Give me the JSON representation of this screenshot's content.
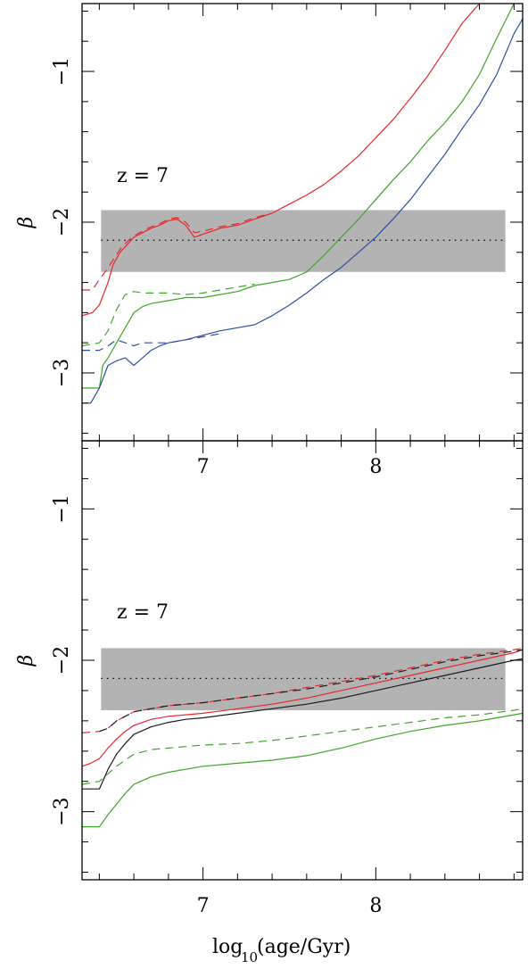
{
  "chart_data": [
    {
      "type": "line",
      "panel": "top",
      "annotation": "z = 7",
      "ylabel": "β",
      "xlim": [
        6.3,
        8.85
      ],
      "ylim": [
        -3.45,
        -0.55
      ],
      "xticks_major": [
        "7",
        "8"
      ],
      "yticks_major": [
        "−1",
        "−2",
        "−3"
      ],
      "band": {
        "y_low": -2.33,
        "y_high": -1.92,
        "x_start": 6.41,
        "x_end": 8.75,
        "color": "#b3b3b3"
      },
      "reference_line": {
        "y": -2.12,
        "style": "dotted"
      },
      "series": [
        {
          "color": "#e8282b",
          "style": "solid",
          "x": [
            6.3,
            6.36,
            6.4,
            6.45,
            6.48,
            6.52,
            6.56,
            6.6,
            6.65,
            6.7,
            6.75,
            6.8,
            6.85,
            6.9,
            6.95,
            7.0,
            7.1,
            7.2,
            7.3,
            7.4,
            7.5,
            7.6,
            7.7,
            7.8,
            7.9,
            8.0,
            8.1,
            8.2,
            8.3,
            8.4,
            8.5,
            8.6
          ],
          "y": [
            -2.62,
            -2.6,
            -2.55,
            -2.4,
            -2.28,
            -2.2,
            -2.15,
            -2.1,
            -2.07,
            -2.04,
            -2.02,
            -1.99,
            -1.98,
            -2.02,
            -2.1,
            -2.08,
            -2.04,
            -2.02,
            -1.98,
            -1.94,
            -1.88,
            -1.82,
            -1.75,
            -1.66,
            -1.56,
            -1.44,
            -1.32,
            -1.18,
            -1.03,
            -0.86,
            -0.68,
            -0.55
          ]
        },
        {
          "color": "#e8282b",
          "style": "dashed",
          "x": [
            6.3,
            6.36,
            6.4,
            6.44,
            6.48,
            6.52,
            6.56,
            6.6,
            6.65,
            6.7,
            6.75,
            6.8,
            6.85,
            6.9,
            6.95,
            7.0,
            7.1,
            7.2,
            7.3,
            7.4
          ],
          "y": [
            -2.45,
            -2.45,
            -2.38,
            -2.32,
            -2.25,
            -2.18,
            -2.13,
            -2.09,
            -2.06,
            -2.03,
            -2.01,
            -1.98,
            -1.97,
            -2.0,
            -2.07,
            -2.06,
            -2.03,
            -2.01,
            -1.97,
            -1.94
          ]
        },
        {
          "color": "#3fa52b",
          "style": "solid",
          "x": [
            6.3,
            6.4,
            6.42,
            6.45,
            6.5,
            6.55,
            6.6,
            6.65,
            6.7,
            6.8,
            6.9,
            7.0,
            7.1,
            7.2,
            7.3,
            7.4,
            7.5,
            7.6,
            7.7,
            7.8,
            7.9,
            8.0,
            8.1,
            8.2,
            8.3,
            8.4,
            8.5,
            8.6,
            8.7,
            8.8
          ],
          "y": [
            -3.1,
            -3.1,
            -2.95,
            -2.9,
            -2.8,
            -2.7,
            -2.6,
            -2.56,
            -2.54,
            -2.52,
            -2.5,
            -2.5,
            -2.48,
            -2.46,
            -2.42,
            -2.4,
            -2.38,
            -2.33,
            -2.22,
            -2.1,
            -1.98,
            -1.85,
            -1.72,
            -1.6,
            -1.46,
            -1.34,
            -1.2,
            -1.02,
            -0.78,
            -0.55
          ]
        },
        {
          "color": "#3fa52b",
          "style": "dashed",
          "x": [
            6.3,
            6.4,
            6.45,
            6.5,
            6.55,
            6.6,
            6.65,
            6.7,
            6.8,
            6.9,
            7.0,
            7.1,
            7.2,
            7.3
          ],
          "y": [
            -2.82,
            -2.8,
            -2.72,
            -2.58,
            -2.48,
            -2.46,
            -2.47,
            -2.47,
            -2.47,
            -2.48,
            -2.47,
            -2.45,
            -2.43,
            -2.41
          ]
        },
        {
          "color": "#2c4fa3",
          "style": "solid",
          "x": [
            6.3,
            6.35,
            6.4,
            6.45,
            6.5,
            6.55,
            6.6,
            6.65,
            6.7,
            6.75,
            6.8,
            6.9,
            7.0,
            7.1,
            7.2,
            7.3,
            7.4,
            7.5,
            7.6,
            7.7,
            7.8,
            7.9,
            8.0,
            8.1,
            8.2,
            8.3,
            8.4,
            8.5,
            8.6,
            8.7,
            8.8,
            8.85
          ],
          "y": [
            -3.2,
            -3.2,
            -3.1,
            -2.95,
            -2.92,
            -2.9,
            -2.95,
            -2.9,
            -2.85,
            -2.82,
            -2.8,
            -2.78,
            -2.75,
            -2.72,
            -2.7,
            -2.68,
            -2.62,
            -2.55,
            -2.47,
            -2.38,
            -2.3,
            -2.2,
            -2.1,
            -1.98,
            -1.85,
            -1.7,
            -1.55,
            -1.38,
            -1.22,
            -1.02,
            -0.75,
            -0.65
          ]
        },
        {
          "color": "#2c4fa3",
          "style": "dashed",
          "x": [
            6.3,
            6.4,
            6.45,
            6.5,
            6.55,
            6.6,
            6.65,
            6.7,
            6.8,
            6.9,
            7.0,
            7.1
          ],
          "y": [
            -2.85,
            -2.85,
            -2.82,
            -2.78,
            -2.8,
            -2.82,
            -2.8,
            -2.8,
            -2.8,
            -2.78,
            -2.76,
            -2.74
          ]
        }
      ]
    },
    {
      "type": "line",
      "panel": "bottom",
      "annotation": "z = 7",
      "ylabel": "β",
      "xlabel_main": "log",
      "xlabel_sub": "10",
      "xlabel_rest": "(age/Gyr)",
      "xlim": [
        6.3,
        8.85
      ],
      "ylim": [
        -3.45,
        -0.55
      ],
      "xticks_major": [
        "7",
        "8"
      ],
      "yticks_major": [
        "−1",
        "−2",
        "−3"
      ],
      "band": {
        "y_low": -2.33,
        "y_high": -1.92,
        "x_start": 6.41,
        "x_end": 8.75,
        "color": "#b3b3b3"
      },
      "reference_line": {
        "y": -2.12,
        "style": "dotted"
      },
      "series": [
        {
          "color": "#e8282b",
          "style": "solid",
          "x": [
            6.3,
            6.35,
            6.4,
            6.45,
            6.5,
            6.55,
            6.6,
            6.7,
            6.8,
            6.9,
            7.0,
            7.2,
            7.4,
            7.6,
            7.8,
            8.0,
            8.2,
            8.4,
            8.6,
            8.8,
            8.85
          ],
          "y": [
            -2.7,
            -2.68,
            -2.65,
            -2.58,
            -2.52,
            -2.47,
            -2.43,
            -2.39,
            -2.37,
            -2.36,
            -2.35,
            -2.32,
            -2.29,
            -2.25,
            -2.2,
            -2.15,
            -2.1,
            -2.05,
            -2.0,
            -1.95,
            -1.93
          ]
        },
        {
          "color": "#e8282b",
          "style": "dashed",
          "x": [
            6.3,
            6.4,
            6.45,
            6.5,
            6.55,
            6.6,
            6.7,
            6.8,
            6.9,
            7.0,
            7.2,
            7.4,
            7.6,
            7.8,
            8.0,
            8.2,
            8.4,
            8.6,
            8.8,
            8.85
          ],
          "y": [
            -2.48,
            -2.47,
            -2.45,
            -2.4,
            -2.37,
            -2.34,
            -2.32,
            -2.3,
            -2.29,
            -2.28,
            -2.25,
            -2.22,
            -2.18,
            -2.14,
            -2.1,
            -2.05,
            -2.0,
            -1.96,
            -1.93,
            -1.92
          ]
        },
        {
          "color": "#1b1b1b",
          "style": "solid",
          "x": [
            6.3,
            6.4,
            6.42,
            6.45,
            6.5,
            6.55,
            6.6,
            6.7,
            6.8,
            6.9,
            7.0,
            7.2,
            7.4,
            7.6,
            7.8,
            8.0,
            8.2,
            8.4,
            8.6,
            8.8,
            8.85
          ],
          "y": [
            -2.85,
            -2.85,
            -2.8,
            -2.72,
            -2.62,
            -2.55,
            -2.49,
            -2.44,
            -2.41,
            -2.39,
            -2.38,
            -2.35,
            -2.32,
            -2.29,
            -2.25,
            -2.2,
            -2.15,
            -2.1,
            -2.05,
            -2.0,
            -1.99
          ]
        },
        {
          "color": "#1b1b1b",
          "style": "dashed",
          "x": [
            6.4,
            6.45,
            6.5,
            6.55,
            6.6,
            6.7,
            6.8,
            6.9,
            7.0,
            7.2,
            7.4,
            7.6,
            7.8,
            8.0,
            8.2,
            8.4,
            8.6,
            8.8,
            8.85
          ],
          "y": [
            -2.47,
            -2.45,
            -2.4,
            -2.37,
            -2.34,
            -2.32,
            -2.3,
            -2.29,
            -2.28,
            -2.25,
            -2.22,
            -2.19,
            -2.15,
            -2.11,
            -2.06,
            -2.01,
            -1.97,
            -1.94,
            -1.93
          ]
        },
        {
          "color": "#3fa52b",
          "style": "solid",
          "x": [
            6.3,
            6.4,
            6.45,
            6.5,
            6.55,
            6.6,
            6.7,
            6.8,
            6.9,
            7.0,
            7.2,
            7.4,
            7.6,
            7.8,
            8.0,
            8.2,
            8.4,
            8.6,
            8.8,
            8.85
          ],
          "y": [
            -3.1,
            -3.1,
            -3.02,
            -2.95,
            -2.88,
            -2.82,
            -2.77,
            -2.74,
            -2.72,
            -2.7,
            -2.68,
            -2.66,
            -2.63,
            -2.58,
            -2.52,
            -2.47,
            -2.43,
            -2.4,
            -2.36,
            -2.35
          ]
        },
        {
          "color": "#3fa52b",
          "style": "dashed",
          "x": [
            6.3,
            6.4,
            6.45,
            6.5,
            6.55,
            6.6,
            6.7,
            6.8,
            6.9,
            7.0,
            7.2,
            7.4,
            7.6,
            7.8,
            8.0,
            8.2,
            8.4,
            8.6,
            8.8,
            8.85
          ],
          "y": [
            -2.82,
            -2.8,
            -2.75,
            -2.7,
            -2.66,
            -2.62,
            -2.59,
            -2.58,
            -2.57,
            -2.56,
            -2.55,
            -2.53,
            -2.5,
            -2.47,
            -2.44,
            -2.41,
            -2.38,
            -2.36,
            -2.33,
            -2.32
          ]
        }
      ]
    }
  ]
}
